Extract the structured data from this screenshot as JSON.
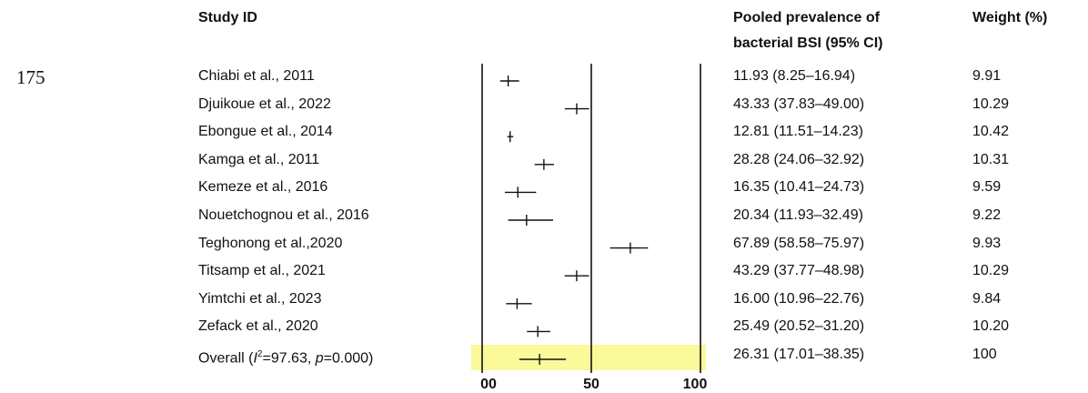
{
  "line_number": "175",
  "headers": {
    "study": "Study ID",
    "prevalence_line1": "Pooled prevalence of",
    "prevalence_line2": "bacterial BSI (95% CI)",
    "weight": "Weight (%)"
  },
  "overall_label": {
    "prefix": "Overall (",
    "i2_symbol": "I",
    "i2_sup": "2",
    "i2_value": "=97.63, ",
    "p_symbol": "p",
    "p_value": "=0.000)"
  },
  "colors": {
    "overall_band": "#fafa9a",
    "ink": "#111111"
  },
  "chart_data": {
    "type": "forest",
    "xlim": [
      0,
      100
    ],
    "x_ticks": [
      "00",
      "50",
      "100"
    ],
    "grid_lines_at": [
      0,
      50,
      100
    ],
    "studies": [
      {
        "id": "Chiabi et al., 2011",
        "est": 11.93,
        "lo": 8.25,
        "hi": 16.94,
        "ci_text": "11.93 (8.25–16.94)",
        "weight": "9.91"
      },
      {
        "id": "Djuikoue et al., 2022",
        "est": 43.33,
        "lo": 37.83,
        "hi": 49.0,
        "ci_text": "43.33 (37.83–49.00)",
        "weight": "10.29"
      },
      {
        "id": "Ebongue et al., 2014",
        "est": 12.81,
        "lo": 11.51,
        "hi": 14.23,
        "ci_text": "12.81 (11.51–14.23)",
        "weight": "10.42"
      },
      {
        "id": "Kamga et al., 2011",
        "est": 28.28,
        "lo": 24.06,
        "hi": 32.92,
        "ci_text": "28.28 (24.06–32.92)",
        "weight": "10.31"
      },
      {
        "id": "Kemeze et al., 2016",
        "est": 16.35,
        "lo": 10.41,
        "hi": 24.73,
        "ci_text": "16.35 (10.41–24.73)",
        "weight": "9.59"
      },
      {
        "id": "Nouetchognou et al., 2016",
        "est": 20.34,
        "lo": 11.93,
        "hi": 32.49,
        "ci_text": "20.34 (11.93–32.49)",
        "weight": "9.22"
      },
      {
        "id": "Teghonong et al.,2020",
        "est": 67.89,
        "lo": 58.58,
        "hi": 75.97,
        "ci_text": "67.89 (58.58–75.97)",
        "weight": "9.93"
      },
      {
        "id": "Titsamp et al., 2021",
        "est": 43.29,
        "lo": 37.77,
        "hi": 48.98,
        "ci_text": "43.29 (37.77–48.98)",
        "weight": "10.29"
      },
      {
        "id": "Yimtchi et al., 2023",
        "est": 16.0,
        "lo": 10.96,
        "hi": 22.76,
        "ci_text": "16.00 (10.96–22.76)",
        "weight": "9.84"
      },
      {
        "id": "Zefack et al., 2020",
        "est": 25.49,
        "lo": 20.52,
        "hi": 31.2,
        "ci_text": "25.49 (20.52–31.20)",
        "weight": "10.20"
      }
    ],
    "overall": {
      "est": 26.31,
      "lo": 17.01,
      "hi": 38.35,
      "ci_text": "26.31 (17.01–38.35)",
      "weight": "100"
    }
  }
}
